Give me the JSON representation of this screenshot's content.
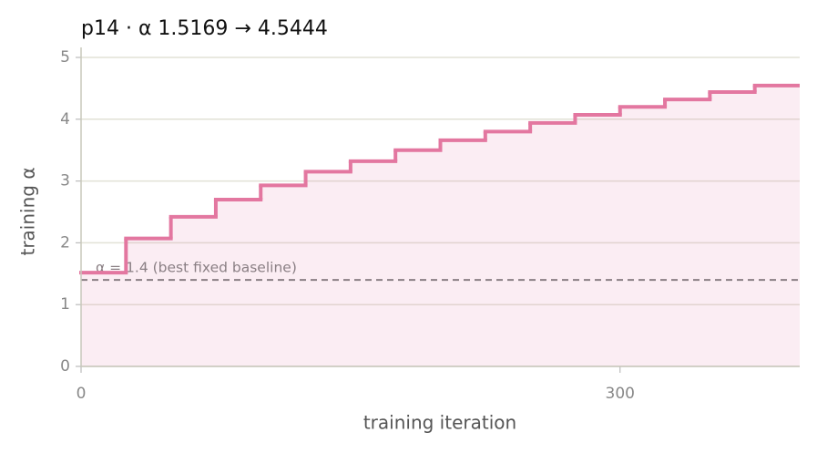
{
  "chart_data": {
    "type": "step",
    "title": "p14   ·   α 1.5169 → 4.5444",
    "x_label": "training iteration",
    "y_label": "training α",
    "x": [
      0,
      25,
      50,
      75,
      100,
      125,
      150,
      175,
      200,
      225,
      250,
      275,
      300,
      325,
      350,
      375
    ],
    "values": [
      1.5169,
      2.07,
      2.42,
      2.7,
      2.93,
      3.15,
      3.32,
      3.5,
      3.66,
      3.8,
      3.94,
      4.07,
      4.2,
      4.32,
      4.44,
      4.5444
    ],
    "color": "#e377a0",
    "baseline": {
      "value": 1.4,
      "label": "α = 1.4 (best fixed baseline)",
      "color": "#8a7f84"
    },
    "xlim": [
      0,
      400
    ],
    "ylim": [
      0,
      5
    ],
    "xticks": [
      0,
      300
    ],
    "yticks": [
      0,
      1,
      2,
      3,
      4,
      5
    ],
    "grid": true
  }
}
